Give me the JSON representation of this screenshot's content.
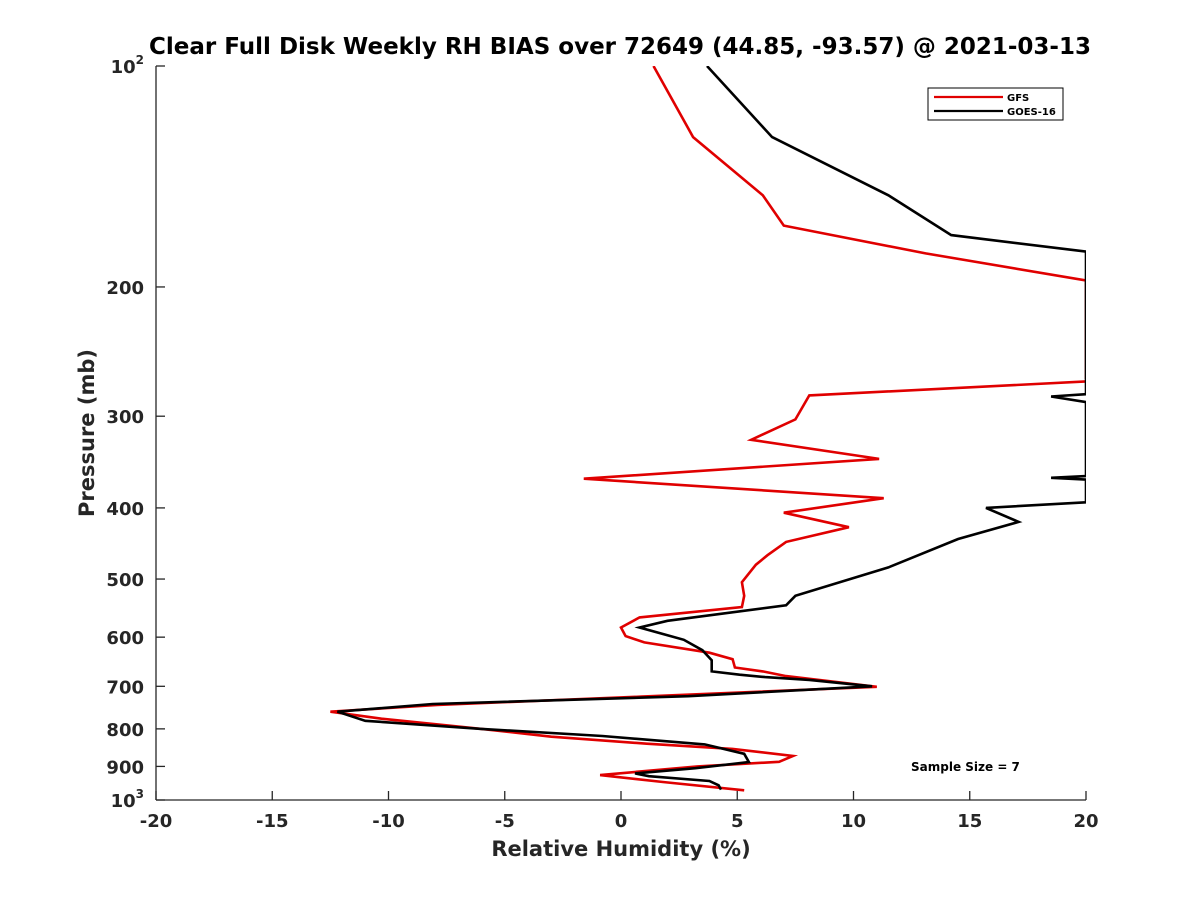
{
  "chart_data": {
    "type": "line",
    "title": "Clear Full Disk Weekly RH BIAS over 72649 (44.85, -93.57) @ 2021-03-13",
    "xlabel": "Relative Humidity (%)",
    "ylabel": "Pressure (mb)",
    "xlim": [
      -20,
      20
    ],
    "ylim": [
      100,
      1000
    ],
    "y_scale": "log",
    "y_reversed": true,
    "x_ticks": [
      -20,
      -15,
      -10,
      -5,
      0,
      5,
      10,
      15,
      20
    ],
    "x_tick_labels": [
      "-20",
      "-15",
      "-10",
      "-5",
      "0",
      "5",
      "10",
      "15",
      "20"
    ],
    "y_ticks": [
      100,
      200,
      300,
      400,
      500,
      600,
      700,
      800,
      900,
      1000
    ],
    "y_tick_labels": [
      {
        "base": "10",
        "exp": "2"
      },
      {
        "base": "200",
        "exp": ""
      },
      {
        "base": "300",
        "exp": ""
      },
      {
        "base": "400",
        "exp": ""
      },
      {
        "base": "500",
        "exp": ""
      },
      {
        "base": "600",
        "exp": ""
      },
      {
        "base": "700",
        "exp": ""
      },
      {
        "base": "800",
        "exp": ""
      },
      {
        "base": "900",
        "exp": ""
      },
      {
        "base": "10",
        "exp": "3"
      }
    ],
    "grid": false,
    "legend_position": "top-right",
    "annotation": "Sample Size = 7",
    "series": [
      {
        "name": "GFS",
        "color": "#e00000",
        "points": [
          [
            1.4,
            100
          ],
          [
            3.1,
            125
          ],
          [
            6.1,
            150
          ],
          [
            7.0,
            165
          ],
          [
            13.1,
            180
          ],
          [
            20.0,
            196
          ],
          [
            20.0,
            266
          ],
          [
            21.0,
            268
          ],
          [
            8.1,
            281
          ],
          [
            7.5,
            303
          ],
          [
            5.6,
            323
          ],
          [
            11.1,
            343
          ],
          [
            -1.6,
            365
          ],
          [
            11.3,
            388
          ],
          [
            7.0,
            406
          ],
          [
            9.8,
            425
          ],
          [
            7.1,
            445
          ],
          [
            6.3,
            464
          ],
          [
            5.8,
            478
          ],
          [
            5.2,
            505
          ],
          [
            5.3,
            527
          ],
          [
            5.2,
            546
          ],
          [
            0.8,
            564
          ],
          [
            0.0,
            582
          ],
          [
            0.2,
            598
          ],
          [
            1.0,
            610
          ],
          [
            3.8,
            630
          ],
          [
            4.8,
            643
          ],
          [
            4.9,
            660
          ],
          [
            6.1,
            668
          ],
          [
            7.1,
            678
          ],
          [
            11.0,
            701
          ],
          [
            0.9,
            723
          ],
          [
            -7.9,
            742
          ],
          [
            -12.5,
            758
          ],
          [
            -10.3,
            775
          ],
          [
            -6.0,
            800
          ],
          [
            -3.0,
            820
          ],
          [
            1.1,
            838
          ],
          [
            4.8,
            852
          ],
          [
            7.4,
            871
          ],
          [
            6.8,
            887
          ],
          [
            3.3,
            900
          ],
          [
            -0.9,
            925
          ],
          [
            1.8,
            945
          ],
          [
            5.3,
            970
          ]
        ]
      },
      {
        "name": "GOES-16",
        "color": "#000000",
        "points": [
          [
            3.7,
            100
          ],
          [
            6.5,
            125
          ],
          [
            11.5,
            150
          ],
          [
            14.2,
            170
          ],
          [
            20.0,
            179
          ],
          [
            20.0,
            280
          ],
          [
            18.5,
            282
          ],
          [
            20.0,
            287
          ],
          [
            20.0,
            362
          ],
          [
            18.5,
            364
          ],
          [
            20.0,
            366
          ],
          [
            20.0,
            393
          ],
          [
            15.7,
            400
          ],
          [
            17.1,
            418
          ],
          [
            14.5,
            441
          ],
          [
            11.5,
            482
          ],
          [
            7.5,
            527
          ],
          [
            7.1,
            543
          ],
          [
            2.0,
            570
          ],
          [
            0.8,
            582
          ],
          [
            2.7,
            605
          ],
          [
            3.5,
            625
          ],
          [
            3.9,
            645
          ],
          [
            3.9,
            668
          ],
          [
            5.1,
            675
          ],
          [
            6.2,
            680
          ],
          [
            8.1,
            686
          ],
          [
            10.8,
            700
          ],
          [
            2.9,
            722
          ],
          [
            -8.1,
            740
          ],
          [
            -12.2,
            758
          ],
          [
            -11.0,
            780
          ],
          [
            -6.0,
            800
          ],
          [
            -0.8,
            818
          ],
          [
            3.6,
            840
          ],
          [
            5.3,
            865
          ],
          [
            5.5,
            888
          ],
          [
            3.2,
            905
          ],
          [
            0.6,
            920
          ],
          [
            1.2,
            928
          ],
          [
            3.8,
            942
          ],
          [
            4.2,
            955
          ],
          [
            4.3,
            968
          ]
        ]
      }
    ]
  }
}
